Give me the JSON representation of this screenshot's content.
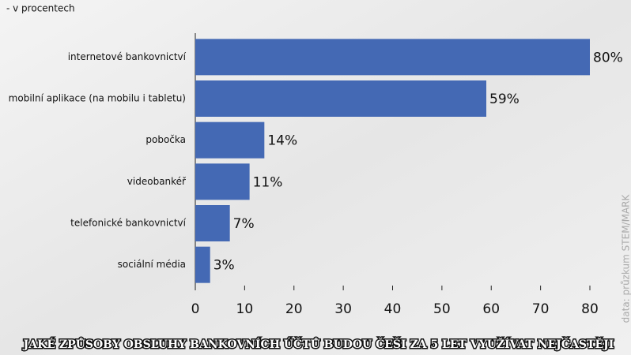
{
  "chart_data": {
    "type": "bar",
    "orientation": "horizontal",
    "title": "JAKÉ ZPŮSOBY OBSLUHY BANKOVNÍCH ÚČTŮ BUDOU ČEŠI ZA 5 LET VYUŽÍVAT NEJČASTĚJI",
    "subtitle": "- v procentech",
    "source": "data: průzkum STEM/MARK",
    "categories": [
      "internetové bankovnictví",
      "mobilní aplikace (na mobilu i tabletu)",
      "pobočka",
      "videobankéř",
      "telefonické bankovnictví",
      "sociální média"
    ],
    "values": [
      80,
      59,
      14,
      11,
      7,
      3
    ],
    "value_labels": [
      "80%",
      "59%",
      "14%",
      "11%",
      "7%",
      "3%"
    ],
    "color": "#4469b4",
    "xlim": [
      0,
      80
    ],
    "xticks": [
      0,
      10,
      20,
      30,
      40,
      50,
      60,
      70,
      80
    ]
  }
}
